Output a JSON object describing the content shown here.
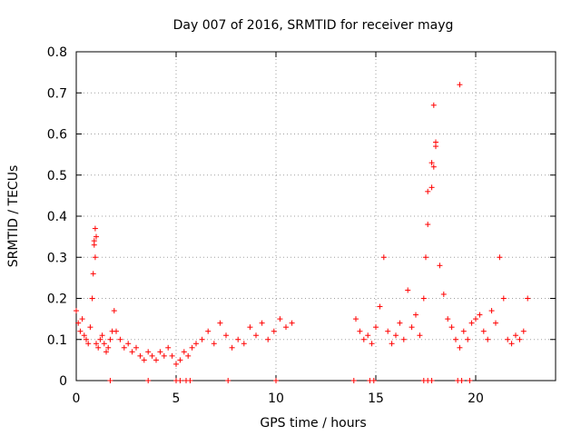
{
  "chart_data": {
    "type": "scatter",
    "title": "Day 007 of 2016, SRMTID for receiver mayg",
    "xlabel": "GPS time / hours",
    "ylabel": "SRMTID / TECUs",
    "xlim": [
      0,
      24
    ],
    "ylim": [
      0,
      0.8
    ],
    "xticks": [
      0,
      5,
      10,
      15,
      20
    ],
    "xtick_labels": [
      "0",
      "5",
      "10",
      "15",
      "20"
    ],
    "yticks": [
      0,
      0.1,
      0.2,
      0.3,
      0.4,
      0.5,
      0.6,
      0.7,
      0.8
    ],
    "ytick_labels": [
      "0",
      "0.1",
      "0.2",
      "0.3",
      "0.4",
      "0.5",
      "0.6",
      "0.7",
      "0.8"
    ],
    "grid": true,
    "marker": "+",
    "color": "#ff0000",
    "series": [
      {
        "name": "SRMTID",
        "x": [
          0.0,
          0.1,
          0.2,
          0.3,
          0.4,
          0.5,
          0.6,
          0.7,
          0.8,
          0.85,
          0.9,
          0.95,
          1.0,
          1.1,
          1.2,
          1.3,
          1.4,
          1.5,
          1.6,
          1.7,
          1.8,
          1.9,
          2.0,
          2.2,
          2.4,
          2.6,
          2.8,
          3.0,
          3.2,
          3.4,
          3.6,
          3.8,
          4.0,
          4.2,
          4.4,
          4.6,
          4.8,
          5.0,
          5.2,
          5.4,
          5.6,
          5.8,
          6.0,
          6.3,
          6.6,
          6.9,
          7.2,
          7.5,
          7.8,
          8.1,
          8.4,
          8.7,
          9.0,
          9.3,
          9.6,
          9.9,
          10.2,
          10.5,
          10.8,
          14.0,
          14.2,
          14.4,
          14.6,
          14.8,
          15.0,
          15.2,
          15.4,
          15.6,
          15.8,
          16.0,
          16.2,
          16.4,
          16.6,
          16.8,
          17.0,
          17.2,
          17.4,
          17.5,
          17.6,
          17.8,
          17.9,
          18.0,
          18.2,
          18.4,
          18.6,
          18.8,
          19.0,
          19.2,
          19.4,
          19.6,
          19.8,
          20.0,
          20.2,
          20.4,
          20.6,
          20.8,
          21.0,
          21.2,
          21.4,
          21.6,
          21.8,
          22.0,
          22.2,
          22.4,
          22.6,
          0.9,
          0.95,
          1.0,
          17.6,
          17.8,
          18.0,
          17.9,
          19.2
        ],
        "y": [
          0.17,
          0.14,
          0.12,
          0.15,
          0.11,
          0.1,
          0.09,
          0.13,
          0.2,
          0.26,
          0.34,
          0.37,
          0.09,
          0.08,
          0.1,
          0.11,
          0.09,
          0.07,
          0.08,
          0.1,
          0.12,
          0.17,
          0.12,
          0.1,
          0.08,
          0.09,
          0.07,
          0.08,
          0.06,
          0.05,
          0.07,
          0.06,
          0.05,
          0.07,
          0.06,
          0.08,
          0.06,
          0.04,
          0.05,
          0.07,
          0.06,
          0.08,
          0.09,
          0.1,
          0.12,
          0.09,
          0.14,
          0.11,
          0.08,
          0.1,
          0.09,
          0.13,
          0.11,
          0.14,
          0.1,
          0.12,
          0.15,
          0.13,
          0.14,
          0.15,
          0.12,
          0.1,
          0.11,
          0.09,
          0.13,
          0.18,
          0.3,
          0.12,
          0.09,
          0.11,
          0.14,
          0.1,
          0.22,
          0.13,
          0.16,
          0.11,
          0.2,
          0.3,
          0.38,
          0.47,
          0.52,
          0.58,
          0.28,
          0.21,
          0.15,
          0.13,
          0.1,
          0.08,
          0.12,
          0.1,
          0.14,
          0.15,
          0.16,
          0.12,
          0.1,
          0.17,
          0.14,
          0.3,
          0.2,
          0.1,
          0.09,
          0.11,
          0.1,
          0.12,
          0.2,
          0.33,
          0.3,
          0.35,
          0.46,
          0.53,
          0.57,
          0.67,
          0.72
        ]
      }
    ],
    "baseline_marks_x": [
      1.7,
      3.6,
      5.0,
      5.2,
      5.5,
      5.7,
      7.6,
      10.0,
      13.9,
      14.7,
      14.9,
      17.4,
      17.6,
      17.8,
      19.1,
      19.3,
      19.7
    ]
  }
}
